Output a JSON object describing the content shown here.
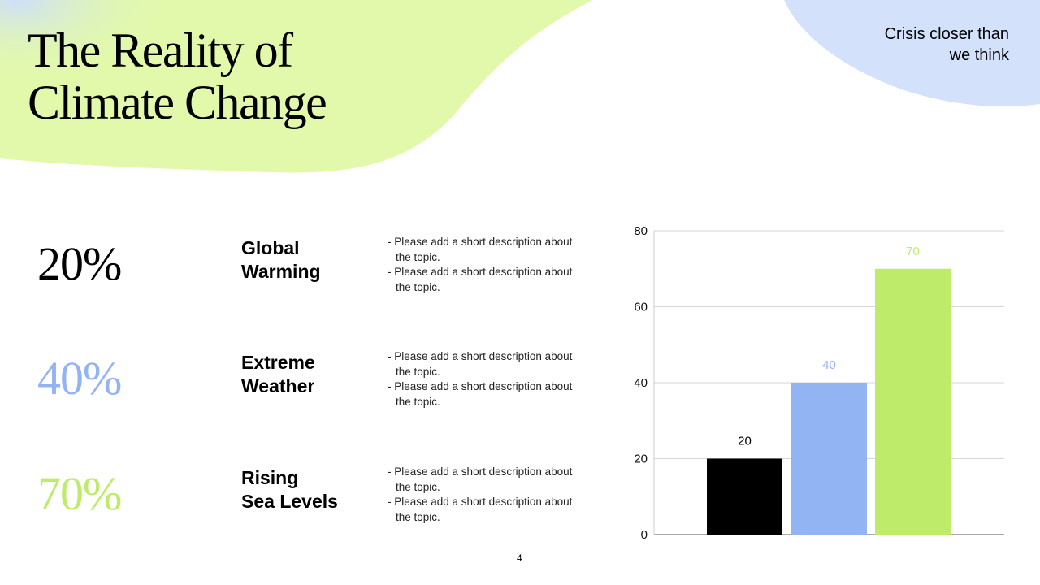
{
  "header": {
    "title_line1": "The Reality of",
    "title_line2": "Climate Change",
    "tagline_line1": "Crisis closer than",
    "tagline_line2": "we think"
  },
  "colors": {
    "black": "#000000",
    "blue": "#93b4f2",
    "green": "#bfeb6a",
    "green_blob": "#e2f9ab",
    "blue_blob": "#d3e1fb"
  },
  "rows": [
    {
      "percent": "20%",
      "color": "#000000",
      "topic_line1": "Global",
      "topic_line2": "Warming",
      "bullets": [
        "- Please add a short description about the topic.",
        "- Please add a short description about the topic."
      ]
    },
    {
      "percent": "40%",
      "color": "#93b4f2",
      "topic_line1": "Extreme",
      "topic_line2": "Weather",
      "bullets": [
        "- Please add a short description about the topic.",
        "- Please add a short description about the topic."
      ]
    },
    {
      "percent": "70%",
      "color": "#bfeb6a",
      "topic_line1": "Rising",
      "topic_line2": "Sea Levels",
      "bullets": [
        "- Please add a short description about the topic.",
        "- Please add a short description about the topic."
      ]
    }
  ],
  "page_number": "4",
  "chart_data": {
    "type": "bar",
    "categories": [
      "Global Warming",
      "Extreme Weather",
      "Rising Sea Levels"
    ],
    "values": [
      20,
      40,
      70
    ],
    "data_labels": [
      "20",
      "40",
      "70"
    ],
    "bar_colors": [
      "#000000",
      "#93b4f2",
      "#bfeb6a"
    ],
    "label_colors": [
      "#000000",
      "#93b4f2",
      "#bfeb6a"
    ],
    "ylim": [
      0,
      80
    ],
    "yticks": [
      "0",
      "20",
      "40",
      "60",
      "80"
    ],
    "grid": true,
    "title": "",
    "xlabel": "",
    "ylabel": ""
  }
}
